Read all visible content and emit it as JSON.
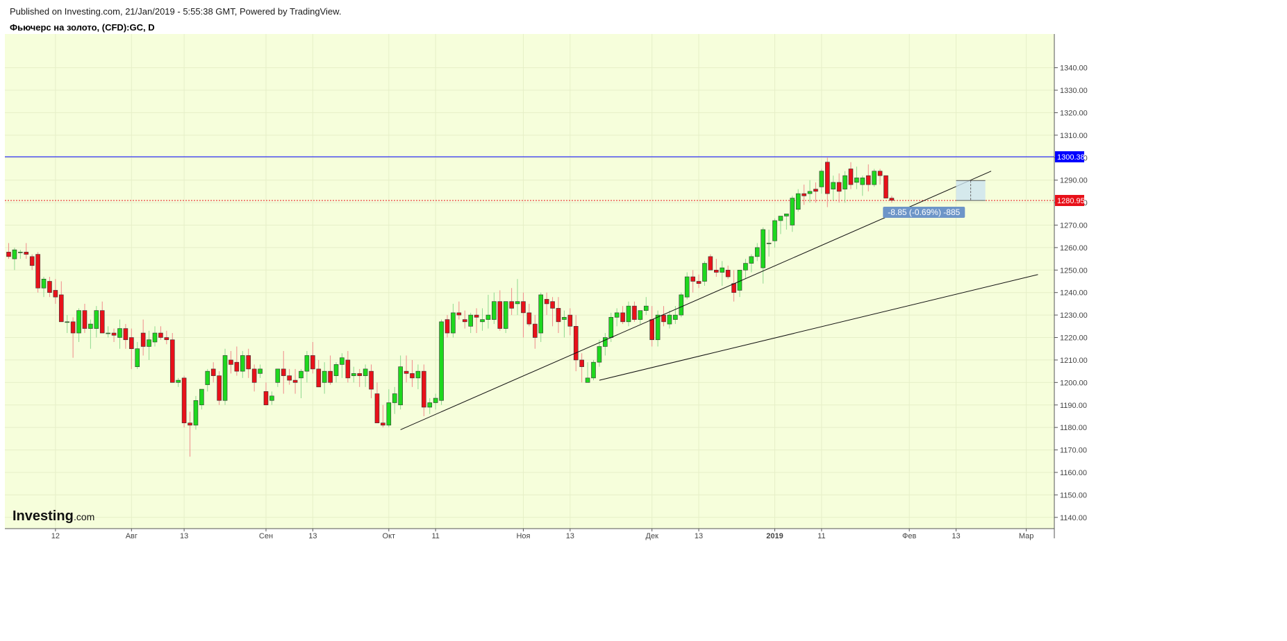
{
  "header": {
    "published": "Published on Investing.com, 21/Jan/2019 - 5:55:38 GMT, Powered by TradingView.",
    "symbol": "Фьючерс на золото, (CFD):GC, D"
  },
  "logo": {
    "main": "Investing",
    "sub": ".com"
  },
  "colors": {
    "background": "#f6fedb",
    "up": "#1ed81e",
    "down": "#e8111a",
    "axis_line": "#555555",
    "resistance": "#0000ff",
    "last_price": "#e8111a",
    "measure": "#6d95c8"
  },
  "chart_data": {
    "type": "candlestick",
    "title": "Фьючерс на золото, (CFD):GC, D",
    "ylim": [
      1135,
      1355
    ],
    "y_ticks": [
      1140,
      1150,
      1160,
      1170,
      1180,
      1190,
      1200,
      1210,
      1220,
      1230,
      1240,
      1250,
      1260,
      1270,
      1280,
      1290,
      1300,
      1310,
      1320,
      1330,
      1340
    ],
    "x_ticks": [
      {
        "bar": 8,
        "label": "12"
      },
      {
        "bar": 21,
        "label": "Авг"
      },
      {
        "bar": 30,
        "label": "13"
      },
      {
        "bar": 44,
        "label": "Сен"
      },
      {
        "bar": 52,
        "label": "13"
      },
      {
        "bar": 65,
        "label": "Окт"
      },
      {
        "bar": 73,
        "label": "11"
      },
      {
        "bar": 88,
        "label": "Ноя"
      },
      {
        "bar": 96,
        "label": "13"
      },
      {
        "bar": 110,
        "label": "Дек"
      },
      {
        "bar": 118,
        "label": "13"
      },
      {
        "bar": 131,
        "label": "2019"
      },
      {
        "bar": 139,
        "label": "11"
      },
      {
        "bar": 154,
        "label": "Фев"
      },
      {
        "bar": 162,
        "label": "13"
      },
      {
        "bar": 174,
        "label": "Мар"
      }
    ],
    "ohlc": [
      [
        1258,
        1262,
        1255,
        1256
      ],
      [
        1255,
        1260,
        1250,
        1259
      ],
      [
        1258,
        1259,
        1255,
        1258
      ],
      [
        1258,
        1262,
        1255,
        1257
      ],
      [
        1256,
        1257,
        1250,
        1252
      ],
      [
        1257,
        1258,
        1240,
        1242
      ],
      [
        1242,
        1247,
        1238,
        1246
      ],
      [
        1245,
        1247,
        1238,
        1240
      ],
      [
        1241,
        1246,
        1235,
        1238
      ],
      [
        1239,
        1245,
        1227,
        1227
      ],
      [
        1227,
        1230,
        1222,
        1227
      ],
      [
        1227,
        1229,
        1211,
        1222
      ],
      [
        1222,
        1233,
        1218,
        1232
      ],
      [
        1232,
        1235,
        1222,
        1224
      ],
      [
        1224,
        1228,
        1215,
        1226
      ],
      [
        1224,
        1234,
        1220,
        1232
      ],
      [
        1232,
        1236,
        1222,
        1222
      ],
      [
        1222,
        1225,
        1220,
        1222
      ],
      [
        1222,
        1224,
        1218,
        1221
      ],
      [
        1220,
        1228,
        1215,
        1224
      ],
      [
        1224,
        1226,
        1215,
        1219
      ],
      [
        1220,
        1224,
        1206,
        1215
      ],
      [
        1207,
        1218,
        1206,
        1215
      ],
      [
        1222,
        1228,
        1212,
        1216
      ],
      [
        1216,
        1223,
        1210,
        1219
      ],
      [
        1218,
        1225,
        1216,
        1222
      ],
      [
        1222,
        1225,
        1219,
        1220
      ],
      [
        1220,
        1223,
        1217,
        1219
      ],
      [
        1219,
        1222,
        1200,
        1200
      ],
      [
        1200,
        1202,
        1198,
        1201
      ],
      [
        1202,
        1203,
        1180,
        1182
      ],
      [
        1182,
        1187,
        1167,
        1181
      ],
      [
        1181,
        1194,
        1179,
        1192
      ],
      [
        1190,
        1197,
        1188,
        1197
      ],
      [
        1199,
        1206,
        1196,
        1205
      ],
      [
        1206,
        1209,
        1200,
        1203
      ],
      [
        1203,
        1205,
        1190,
        1192
      ],
      [
        1192,
        1215,
        1190,
        1212
      ],
      [
        1210,
        1214,
        1204,
        1208
      ],
      [
        1209,
        1216,
        1203,
        1205
      ],
      [
        1205,
        1214,
        1202,
        1212
      ],
      [
        1212,
        1215,
        1202,
        1206
      ],
      [
        1206,
        1208,
        1196,
        1200
      ],
      [
        1204,
        1208,
        1202,
        1206
      ],
      [
        1196,
        1200,
        1190,
        1190
      ],
      [
        1192,
        1196,
        1190,
        1194
      ],
      [
        1200,
        1204,
        1198,
        1206
      ],
      [
        1206,
        1214,
        1195,
        1203
      ],
      [
        1203,
        1206,
        1199,
        1201
      ],
      [
        1201,
        1206,
        1195,
        1200
      ],
      [
        1202,
        1206,
        1193,
        1205
      ],
      [
        1205,
        1214,
        1200,
        1212
      ],
      [
        1212,
        1218,
        1204,
        1206
      ],
      [
        1206,
        1210,
        1198,
        1198
      ],
      [
        1200,
        1209,
        1195,
        1205
      ],
      [
        1205,
        1212,
        1199,
        1200
      ],
      [
        1203,
        1209,
        1200,
        1208
      ],
      [
        1208,
        1213,
        1202,
        1211
      ],
      [
        1210,
        1214,
        1200,
        1202
      ],
      [
        1203,
        1207,
        1200,
        1204
      ],
      [
        1204,
        1206,
        1198,
        1203
      ],
      [
        1203,
        1208,
        1198,
        1206
      ],
      [
        1205,
        1208,
        1193,
        1197
      ],
      [
        1195,
        1200,
        1182,
        1182
      ],
      [
        1182,
        1190,
        1180,
        1181
      ],
      [
        1181,
        1197,
        1180,
        1191
      ],
      [
        1191,
        1198,
        1186,
        1195
      ],
      [
        1190,
        1212,
        1188,
        1207
      ],
      [
        1205,
        1212,
        1200,
        1204
      ],
      [
        1204,
        1210,
        1198,
        1202
      ],
      [
        1202,
        1208,
        1197,
        1205
      ],
      [
        1205,
        1208,
        1185,
        1189
      ],
      [
        1189,
        1193,
        1186,
        1191
      ],
      [
        1191,
        1195,
        1188,
        1193
      ],
      [
        1192,
        1228,
        1190,
        1227
      ],
      [
        1228,
        1230,
        1220,
        1222
      ],
      [
        1222,
        1235,
        1220,
        1231
      ],
      [
        1231,
        1236,
        1228,
        1230
      ],
      [
        1228,
        1232,
        1224,
        1227
      ],
      [
        1225,
        1231,
        1222,
        1230
      ],
      [
        1230,
        1233,
        1222,
        1229
      ],
      [
        1227,
        1233,
        1223,
        1228
      ],
      [
        1228,
        1239,
        1224,
        1230
      ],
      [
        1228,
        1240,
        1226,
        1236
      ],
      [
        1236,
        1241,
        1223,
        1224
      ],
      [
        1224,
        1236,
        1222,
        1236
      ],
      [
        1236,
        1242,
        1230,
        1233
      ],
      [
        1235,
        1246,
        1230,
        1236
      ],
      [
        1236,
        1240,
        1220,
        1231
      ],
      [
        1231,
        1235,
        1225,
        1226
      ],
      [
        1226,
        1230,
        1215,
        1220
      ],
      [
        1222,
        1240,
        1218,
        1239
      ],
      [
        1237,
        1240,
        1230,
        1235
      ],
      [
        1236,
        1238,
        1225,
        1233
      ],
      [
        1233,
        1238,
        1222,
        1227
      ],
      [
        1228,
        1232,
        1220,
        1229
      ],
      [
        1230,
        1233,
        1221,
        1225
      ],
      [
        1225,
        1230,
        1205,
        1210
      ],
      [
        1210,
        1213,
        1200,
        1207
      ],
      [
        1200,
        1209,
        1201,
        1202
      ],
      [
        1202,
        1210,
        1201,
        1209
      ],
      [
        1209,
        1219,
        1207,
        1216
      ],
      [
        1216,
        1222,
        1212,
        1220
      ],
      [
        1220,
        1231,
        1218,
        1229
      ],
      [
        1229,
        1233,
        1225,
        1231
      ],
      [
        1231,
        1234,
        1226,
        1227
      ],
      [
        1227,
        1236,
        1225,
        1234
      ],
      [
        1234,
        1236,
        1227,
        1228
      ],
      [
        1228,
        1232,
        1226,
        1232
      ],
      [
        1232,
        1238,
        1230,
        1234
      ],
      [
        1228,
        1234,
        1216,
        1219
      ],
      [
        1219,
        1232,
        1216,
        1230
      ],
      [
        1230,
        1234,
        1225,
        1227
      ],
      [
        1226,
        1232,
        1224,
        1230
      ],
      [
        1228,
        1234,
        1226,
        1230
      ],
      [
        1230,
        1240,
        1229,
        1239
      ],
      [
        1238,
        1249,
        1237,
        1247
      ],
      [
        1247,
        1250,
        1240,
        1245
      ],
      [
        1245,
        1248,
        1242,
        1244
      ],
      [
        1245,
        1254,
        1243,
        1253
      ],
      [
        1256,
        1257,
        1250,
        1250
      ],
      [
        1250,
        1255,
        1247,
        1249
      ],
      [
        1249,
        1254,
        1243,
        1251
      ],
      [
        1250,
        1252,
        1246,
        1247
      ],
      [
        1244,
        1250,
        1236,
        1240
      ],
      [
        1241,
        1248,
        1238,
        1250
      ],
      [
        1250,
        1255,
        1246,
        1253
      ],
      [
        1253,
        1257,
        1249,
        1256
      ],
      [
        1256,
        1262,
        1254,
        1260
      ],
      [
        1251,
        1269,
        1244,
        1268
      ],
      [
        1262,
        1268,
        1256,
        1262
      ],
      [
        1263,
        1273,
        1260,
        1272
      ],
      [
        1272,
        1274,
        1266,
        1274
      ],
      [
        1274,
        1275,
        1268,
        1275
      ],
      [
        1270,
        1283,
        1267,
        1282
      ],
      [
        1277,
        1286,
        1276,
        1284
      ],
      [
        1284,
        1288,
        1279,
        1283
      ],
      [
        1284,
        1290,
        1280,
        1285
      ],
      [
        1286,
        1289,
        1280,
        1285
      ],
      [
        1287,
        1295,
        1284,
        1294
      ],
      [
        1298,
        1300,
        1278,
        1284
      ],
      [
        1286,
        1292,
        1281,
        1289
      ],
      [
        1289,
        1293,
        1280,
        1285
      ],
      [
        1286,
        1294,
        1280,
        1292
      ],
      [
        1295,
        1298,
        1286,
        1288
      ],
      [
        1289,
        1296,
        1286,
        1291
      ],
      [
        1288,
        1292,
        1283,
        1291
      ],
      [
        1292,
        1297,
        1285,
        1288
      ],
      [
        1288,
        1295,
        1287,
        1294
      ],
      [
        1294,
        1295,
        1288,
        1292
      ],
      [
        1292,
        1292,
        1282,
        1282
      ],
      [
        1282,
        1283,
        1280,
        1281
      ]
    ],
    "trend_lines": [
      {
        "from": [
          67,
          1179
        ],
        "to": [
          168,
          1294
        ]
      },
      {
        "from": [
          101,
          1201
        ],
        "to": [
          176,
          1248
        ]
      }
    ],
    "horizontal_lines": [
      {
        "price": 1300.38,
        "label": "1300.38",
        "color": "#0000ff",
        "style": "solid"
      },
      {
        "price": 1280.95,
        "label": "1280.95",
        "color": "#e8111a",
        "style": "dotted"
      }
    ],
    "price_range_measure": {
      "from_bar": 162,
      "to_bar": 167,
      "top": 1289.8,
      "bottom": 1280.95,
      "label": "-8.85 (-0.69%) -885"
    }
  }
}
